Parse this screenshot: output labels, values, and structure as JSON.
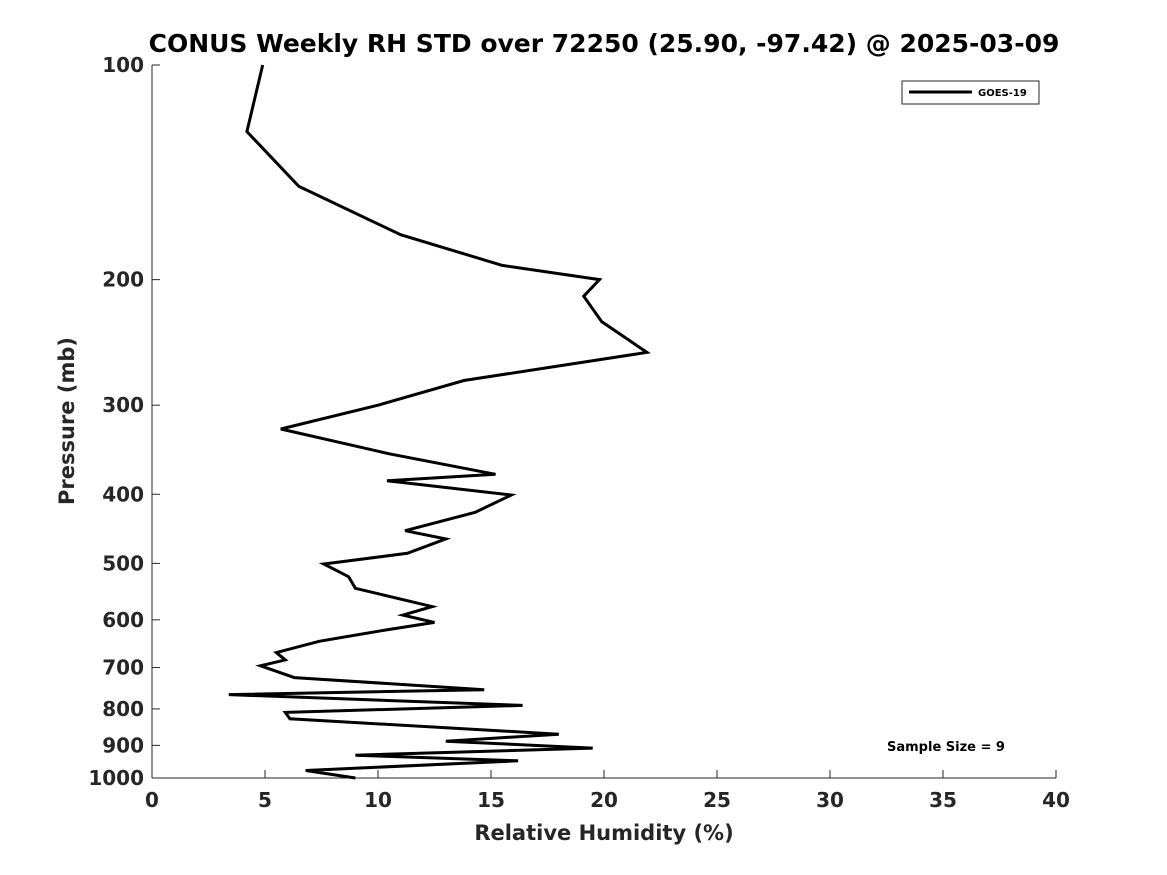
{
  "chart_data": {
    "type": "line",
    "title": "CONUS Weekly RH STD over 72250 (25.90, -97.42) @ 2025-03-09",
    "xlabel": "Relative Humidity (%)",
    "ylabel": "Pressure (mb)",
    "xlim": [
      0,
      40
    ],
    "ylim": [
      100,
      1000
    ],
    "yscale": "log",
    "y_reversed": true,
    "grid": false,
    "xticks": [
      0,
      5,
      10,
      15,
      20,
      25,
      30,
      35,
      40
    ],
    "yticks": [
      100,
      200,
      300,
      400,
      500,
      600,
      700,
      800,
      900,
      1000
    ],
    "legend_position": "top-right",
    "annotation": "Sample Size = 9",
    "colors": {
      "series": "#000000",
      "axis": "#262626"
    },
    "series": [
      {
        "name": "GOES-19",
        "points": [
          {
            "x": 4.9,
            "y": 100
          },
          {
            "x": 4.2,
            "y": 124
          },
          {
            "x": 6.5,
            "y": 148
          },
          {
            "x": 11.0,
            "y": 173
          },
          {
            "x": 15.5,
            "y": 191
          },
          {
            "x": 19.8,
            "y": 200
          },
          {
            "x": 19.1,
            "y": 211
          },
          {
            "x": 19.9,
            "y": 229
          },
          {
            "x": 21.9,
            "y": 253
          },
          {
            "x": 13.8,
            "y": 277
          },
          {
            "x": 10.0,
            "y": 300
          },
          {
            "x": 5.7,
            "y": 324
          },
          {
            "x": 10.5,
            "y": 351
          },
          {
            "x": 15.2,
            "y": 375
          },
          {
            "x": 10.4,
            "y": 383
          },
          {
            "x": 15.9,
            "y": 401
          },
          {
            "x": 14.3,
            "y": 424
          },
          {
            "x": 11.2,
            "y": 450
          },
          {
            "x": 13.0,
            "y": 462
          },
          {
            "x": 11.3,
            "y": 484
          },
          {
            "x": 7.6,
            "y": 501
          },
          {
            "x": 8.7,
            "y": 522
          },
          {
            "x": 9.0,
            "y": 542
          },
          {
            "x": 12.4,
            "y": 575
          },
          {
            "x": 11.1,
            "y": 591
          },
          {
            "x": 12.5,
            "y": 605
          },
          {
            "x": 10.2,
            "y": 621
          },
          {
            "x": 7.4,
            "y": 643
          },
          {
            "x": 5.5,
            "y": 667
          },
          {
            "x": 5.9,
            "y": 683
          },
          {
            "x": 4.8,
            "y": 696
          },
          {
            "x": 6.3,
            "y": 723
          },
          {
            "x": 14.7,
            "y": 752
          },
          {
            "x": 3.4,
            "y": 764
          },
          {
            "x": 16.4,
            "y": 791
          },
          {
            "x": 5.9,
            "y": 809
          },
          {
            "x": 6.1,
            "y": 826
          },
          {
            "x": 18.0,
            "y": 868
          },
          {
            "x": 13.0,
            "y": 888
          },
          {
            "x": 19.5,
            "y": 908
          },
          {
            "x": 9.0,
            "y": 929
          },
          {
            "x": 16.2,
            "y": 946
          },
          {
            "x": 6.8,
            "y": 976
          },
          {
            "x": 9.0,
            "y": 1000
          }
        ]
      }
    ]
  }
}
